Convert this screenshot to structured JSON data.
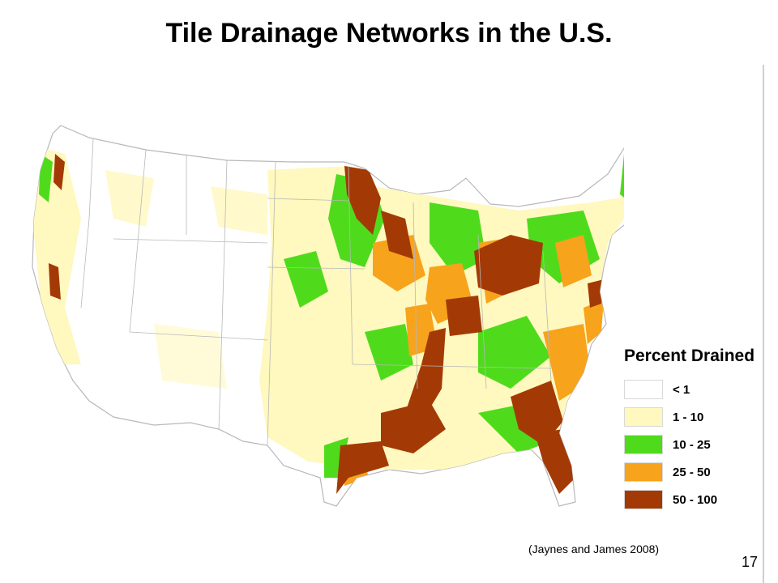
{
  "slide": {
    "title": "Tile Drainage Networks in the U.S.",
    "citation": "(Jaynes and James 2008)",
    "page_number": "17"
  },
  "legend": {
    "title": "Percent Drained",
    "items": [
      {
        "label": "< 1",
        "color": "#ffffff"
      },
      {
        "label": "1 - 10",
        "color": "#fff8bf"
      },
      {
        "label": "10 - 25",
        "color": "#4fdb1c"
      },
      {
        "label": "25 - 50",
        "color": "#f7a31c"
      },
      {
        "label": "50 - 100",
        "color": "#a33a05"
      }
    ]
  },
  "map": {
    "boundary_color": "#b8b8b8"
  }
}
